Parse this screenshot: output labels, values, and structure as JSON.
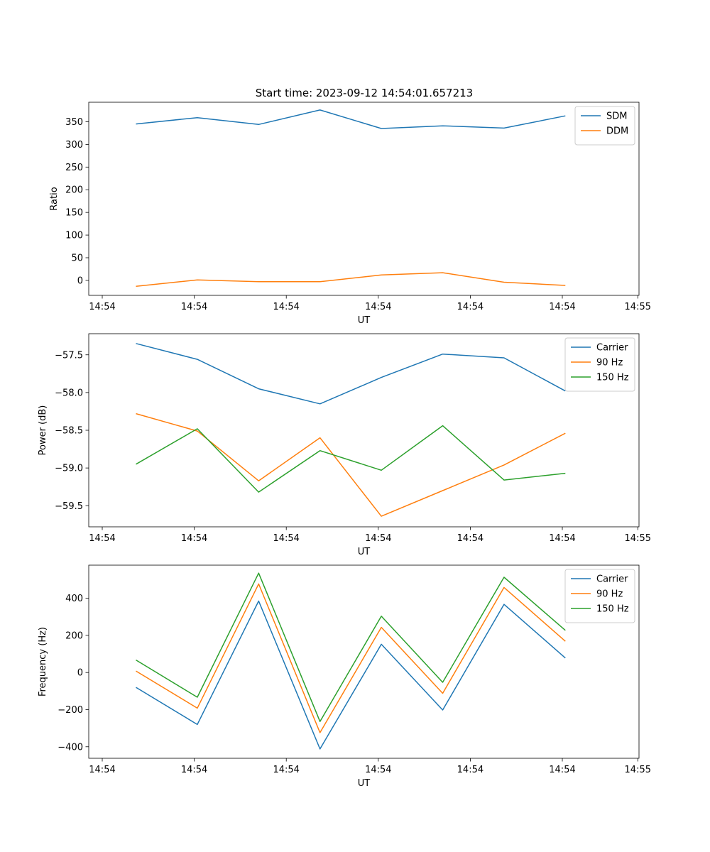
{
  "figure": {
    "title": "Start time: 2023-09-12 14:54:01.657213"
  },
  "chart_data": [
    {
      "type": "line",
      "title": "Start time: 2023-09-12 14:54:01.657213",
      "xlabel": "UT",
      "ylabel": "Ratio",
      "x": [
        1,
        2,
        3,
        4,
        5,
        6,
        7,
        8
      ],
      "xlim": [
        0.23,
        9.2
      ],
      "x_ticks": [
        0.45,
        1.95,
        3.45,
        4.95,
        6.45,
        7.95,
        9.18
      ],
      "x_tick_labels": [
        "14:54",
        "14:54",
        "14:54",
        "14:54",
        "14:54",
        "14:54",
        "14:55"
      ],
      "ylim": [
        -33,
        393
      ],
      "y_ticks": [
        0,
        50,
        100,
        150,
        200,
        250,
        300,
        350
      ],
      "y_tick_labels": [
        "0",
        "50",
        "100",
        "150",
        "200",
        "250",
        "300",
        "350"
      ],
      "legend": "top-right",
      "series": [
        {
          "name": "SDM",
          "color": "#1f77b4",
          "values": [
            345,
            359,
            344,
            376,
            335,
            341,
            336,
            363
          ]
        },
        {
          "name": "DDM",
          "color": "#ff7f0e",
          "values": [
            -13,
            1,
            -3,
            -3,
            12,
            17,
            -4,
            -11
          ]
        }
      ]
    },
    {
      "type": "line",
      "title": "",
      "xlabel": "UT",
      "ylabel": "Power (dB)",
      "x": [
        1,
        2,
        3,
        4,
        5,
        6,
        7,
        8
      ],
      "xlim": [
        0.23,
        9.2
      ],
      "x_ticks": [
        0.45,
        1.95,
        3.45,
        4.95,
        6.45,
        7.95,
        9.18
      ],
      "x_tick_labels": [
        "14:54",
        "14:54",
        "14:54",
        "14:54",
        "14:54",
        "14:54",
        "14:55"
      ],
      "ylim": [
        -59.78,
        -57.22
      ],
      "y_ticks": [
        -59.5,
        -59.0,
        -58.5,
        -58.0,
        -57.5
      ],
      "y_tick_labels": [
        "−59.5",
        "−59.0",
        "−58.5",
        "−58.0",
        "−57.5"
      ],
      "legend": "top-right",
      "series": [
        {
          "name": "Carrier",
          "color": "#1f77b4",
          "values": [
            -57.35,
            -57.56,
            -57.95,
            -58.15,
            -57.8,
            -57.49,
            -57.54,
            -57.98
          ]
        },
        {
          "name": "90 Hz",
          "color": "#ff7f0e",
          "values": [
            -58.28,
            -58.51,
            -59.17,
            -58.6,
            -59.64,
            -59.3,
            -58.96,
            -58.54
          ]
        },
        {
          "name": "150 Hz",
          "color": "#2ca02c",
          "values": [
            -58.95,
            -58.48,
            -59.32,
            -58.77,
            -59.03,
            -58.44,
            -59.16,
            -59.07
          ]
        }
      ]
    },
    {
      "type": "line",
      "title": "",
      "xlabel": "UT",
      "ylabel": "Frequency (Hz)",
      "x": [
        1,
        2,
        3,
        4,
        5,
        6,
        7,
        8
      ],
      "xlim": [
        0.23,
        9.2
      ],
      "x_ticks": [
        0.45,
        1.95,
        3.45,
        4.95,
        6.45,
        7.95,
        9.18
      ],
      "x_tick_labels": [
        "14:54",
        "14:54",
        "14:54",
        "14:54",
        "14:54",
        "14:54",
        "14:55"
      ],
      "ylim": [
        -462,
        578
      ],
      "y_ticks": [
        -400,
        -200,
        0,
        200,
        400
      ],
      "y_tick_labels": [
        "−400",
        "−200",
        "0",
        "200",
        "400"
      ],
      "legend": "top-right",
      "series": [
        {
          "name": "Carrier",
          "color": "#1f77b4",
          "values": [
            -80,
            -280,
            385,
            -412,
            152,
            -202,
            367,
            78
          ]
        },
        {
          "name": "90 Hz",
          "color": "#ff7f0e",
          "values": [
            8,
            -192,
            477,
            -324,
            243,
            -112,
            458,
            168
          ]
        },
        {
          "name": "150 Hz",
          "color": "#2ca02c",
          "values": [
            67,
            -133,
            535,
            -264,
            303,
            -53,
            513,
            227
          ]
        }
      ]
    }
  ]
}
